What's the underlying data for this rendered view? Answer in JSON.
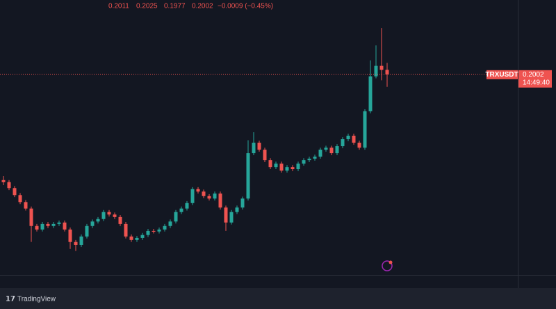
{
  "chart_data": {
    "type": "candlestick",
    "symbol": "TRXUSDT",
    "last_time": "14:49:40",
    "change_label": "−0.0009 (−0.45%)",
    "brand": "TradingView",
    "up_color": "#26a69a",
    "down_color": "#ef5350",
    "ylim": [
      0.16,
      0.2151
    ],
    "open": [
      0.179,
      0.1786,
      0.1774,
      0.176,
      0.1746,
      0.1733,
      0.1698,
      0.1691,
      0.1702,
      0.1698,
      0.1702,
      0.1705,
      0.1691,
      0.1666,
      0.166,
      0.1677,
      0.1698,
      0.1707,
      0.1712,
      0.1726,
      0.1721,
      0.1716,
      0.1702,
      0.1677,
      0.167,
      0.1674,
      0.168,
      0.1688,
      0.1687,
      0.1691,
      0.1698,
      0.1707,
      0.1726,
      0.1733,
      0.1744,
      0.1772,
      0.1767,
      0.1758,
      0.1753,
      0.1763,
      0.1735,
      0.1705,
      0.1726,
      0.1735,
      0.1753,
      0.1844,
      0.1865,
      0.1851,
      0.183,
      0.1816,
      0.1823,
      0.1809,
      0.1816,
      0.1812,
      0.1823,
      0.183,
      0.1833,
      0.1837,
      0.1851,
      0.1855,
      0.1844,
      0.1858,
      0.1872,
      0.1879,
      0.1865,
      0.1855,
      0.1928,
      0.1998,
      0.2019,
      0.2011
    ],
    "high": [
      0.1798,
      0.179,
      0.1778,
      0.1764,
      0.175,
      0.1737,
      0.1702,
      0.1706,
      0.1706,
      0.1706,
      0.1709,
      0.1709,
      0.1695,
      0.167,
      0.1681,
      0.1702,
      0.1711,
      0.1716,
      0.173,
      0.173,
      0.1725,
      0.172,
      0.1706,
      0.1681,
      0.1678,
      0.1684,
      0.1692,
      0.1692,
      0.1695,
      0.1702,
      0.1711,
      0.173,
      0.1737,
      0.1748,
      0.1776,
      0.1776,
      0.1771,
      0.1762,
      0.1767,
      0.1767,
      0.1739,
      0.173,
      0.1739,
      0.1757,
      0.187,
      0.1886,
      0.1869,
      0.1855,
      0.1834,
      0.1827,
      0.1827,
      0.182,
      0.182,
      0.1827,
      0.1834,
      0.1837,
      0.1841,
      0.1855,
      0.1859,
      0.1859,
      0.1862,
      0.1876,
      0.1883,
      0.1883,
      0.1869,
      0.1932,
      0.203,
      0.206,
      0.2095,
      0.2025
    ],
    "low": [
      0.178,
      0.177,
      0.1756,
      0.1742,
      0.1729,
      0.1666,
      0.1687,
      0.1687,
      0.1694,
      0.1694,
      0.1698,
      0.1687,
      0.1652,
      0.1648,
      0.1656,
      0.1673,
      0.1694,
      0.1703,
      0.1708,
      0.1717,
      0.1712,
      0.1698,
      0.1673,
      0.1666,
      0.1666,
      0.167,
      0.1676,
      0.1683,
      0.1683,
      0.1687,
      0.1694,
      0.1703,
      0.1722,
      0.1729,
      0.174,
      0.1763,
      0.1754,
      0.1749,
      0.1749,
      0.1731,
      0.1688,
      0.1701,
      0.1722,
      0.1731,
      0.1749,
      0.184,
      0.1847,
      0.1826,
      0.1812,
      0.1812,
      0.1805,
      0.1805,
      0.1808,
      0.1808,
      0.1819,
      0.1826,
      0.1829,
      0.1833,
      0.1847,
      0.184,
      0.184,
      0.1854,
      0.1868,
      0.1861,
      0.1851,
      0.1851,
      0.1924,
      0.1994,
      0.199,
      0.1977
    ],
    "close": [
      0.1786,
      0.1774,
      0.176,
      0.1746,
      0.1733,
      0.1698,
      0.1691,
      0.1702,
      0.1698,
      0.1702,
      0.1705,
      0.1691,
      0.1666,
      0.166,
      0.1677,
      0.1698,
      0.1707,
      0.1712,
      0.1726,
      0.1721,
      0.1716,
      0.1702,
      0.1677,
      0.167,
      0.1674,
      0.168,
      0.1688,
      0.1687,
      0.1691,
      0.1698,
      0.1707,
      0.1726,
      0.1733,
      0.1744,
      0.1772,
      0.1767,
      0.1758,
      0.1753,
      0.1763,
      0.1735,
      0.1705,
      0.1726,
      0.1735,
      0.1753,
      0.1844,
      0.1865,
      0.1851,
      0.183,
      0.1816,
      0.1823,
      0.1809,
      0.1816,
      0.1812,
      0.1823,
      0.183,
      0.1833,
      0.1837,
      0.1851,
      0.1855,
      0.1844,
      0.1858,
      0.1872,
      0.1879,
      0.1865,
      0.1855,
      0.1928,
      0.1998,
      0.2019,
      0.2011,
      0.2002
    ]
  }
}
